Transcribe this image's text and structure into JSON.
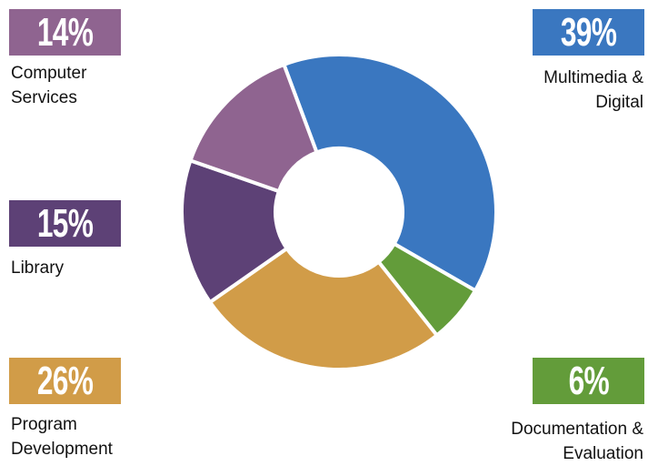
{
  "chart_data": {
    "type": "donut",
    "categories": [
      "Multimedia & Digital",
      "Documentation & Evaluation",
      "Program Development",
      "Library",
      "Computer Services"
    ],
    "values": [
      39,
      6,
      26,
      15,
      14
    ],
    "value_labels": [
      "39%",
      "6%",
      "26%",
      "15%",
      "14%"
    ],
    "colors": [
      "#3a77c0",
      "#639c3a",
      "#d19c48",
      "#5d4176",
      "#8f6490"
    ]
  }
}
